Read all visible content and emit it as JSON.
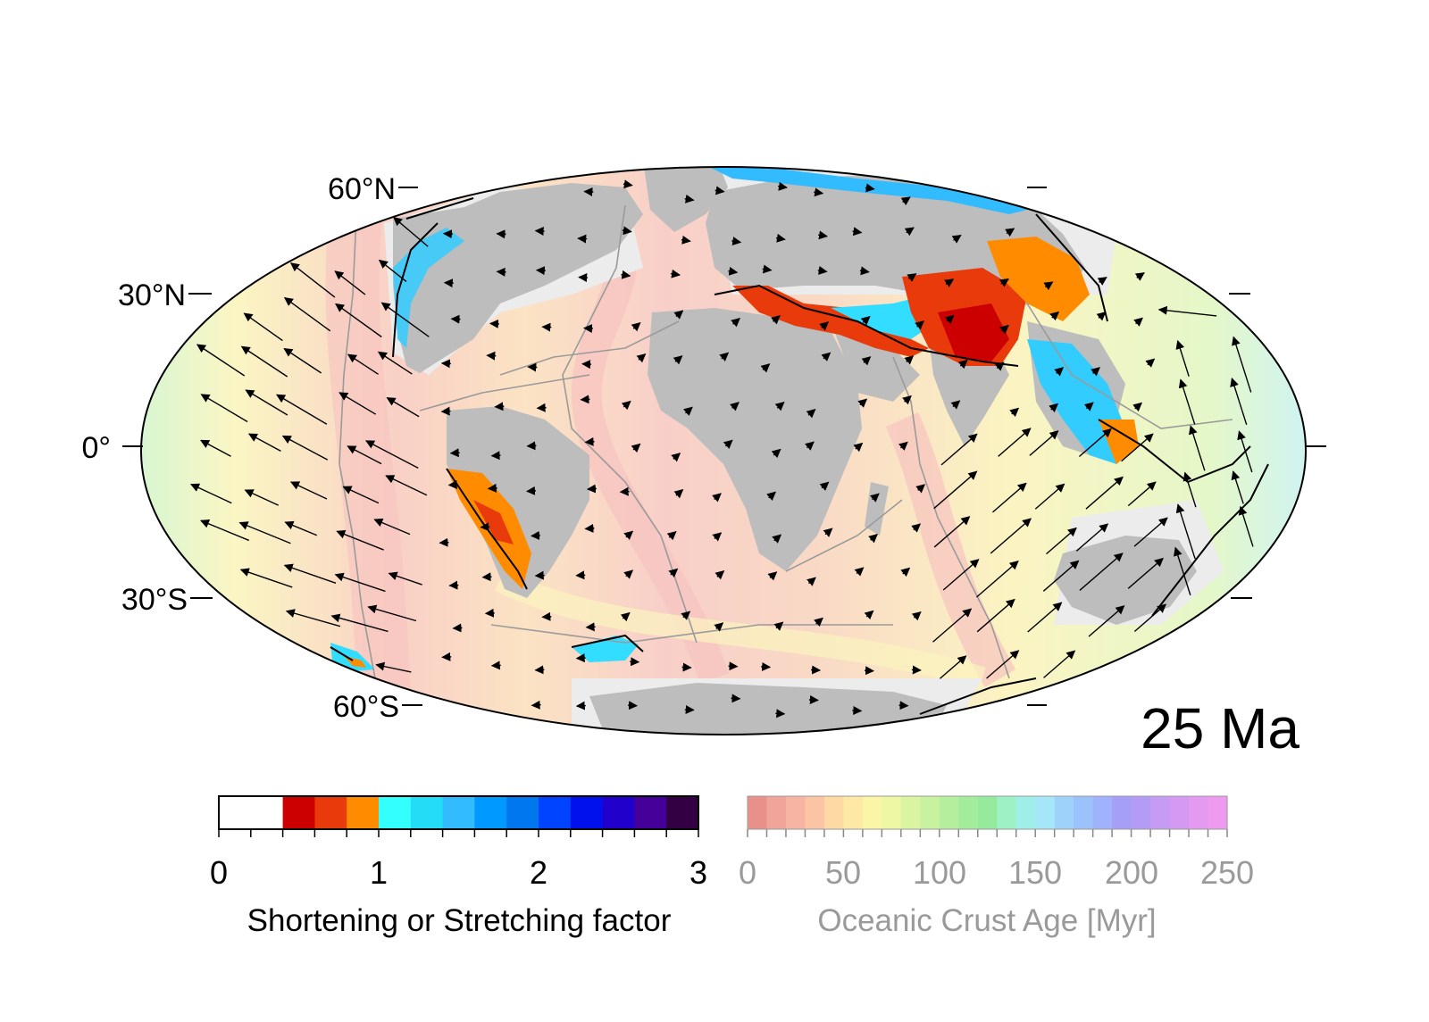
{
  "map": {
    "age_label": "25 Ma",
    "lat_labels": {
      "n60": "60°N",
      "n30": "30°N",
      "eq": "0°",
      "s30": "30°S",
      "s60": "60°S"
    }
  },
  "colorbar_factor": {
    "title": "Shortening or Stretching factor",
    "ticks": [
      "0",
      "1",
      "2",
      "3"
    ],
    "colors": [
      "#ffffff",
      "#ffffff",
      "#cc0000",
      "#e83a0a",
      "#ff8c00",
      "#33ffff",
      "#22ddf5",
      "#33bbff",
      "#0099ff",
      "#0077ee",
      "#0044ff",
      "#0011ee",
      "#2200cc",
      "#440099",
      "#330044"
    ]
  },
  "colorbar_age": {
    "title": "Oceanic Crust Age [Myr]",
    "ticks": [
      "0",
      "50",
      "100",
      "150",
      "200",
      "250"
    ],
    "colors": [
      "#e8908a",
      "#f0a49a",
      "#f7b4a3",
      "#fbc4a4",
      "#fdd9a4",
      "#fde8a6",
      "#fbf5a6",
      "#eef7a3",
      "#daf5a1",
      "#c8f29f",
      "#b5ef9d",
      "#a3ec9c",
      "#96ea9c",
      "#9ef0c5",
      "#9fefe8",
      "#a5e6f8",
      "#9fd2fb",
      "#9bc2fb",
      "#9fb2fb",
      "#a69ff8",
      "#b49cf6",
      "#c69bf5",
      "#d49af3",
      "#e39af0",
      "#ee9aef"
    ]
  },
  "colors": {
    "continent": "#bdbdbd",
    "shelf": "#ececec",
    "ocean_young": "#f9c9c3",
    "ocean_mid": "#fbf4bf",
    "ocean_old": "#d4f5c8",
    "boundary": "#9a9a9a",
    "arrow": "#000000"
  }
}
